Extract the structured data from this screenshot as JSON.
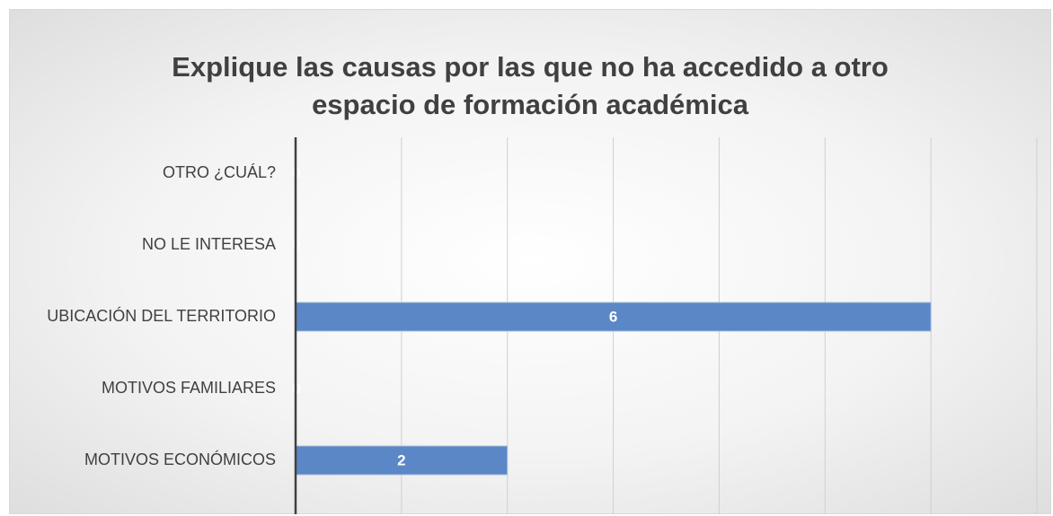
{
  "chart_data": {
    "type": "hbar",
    "title": "Explique las causas por las que no ha accedido a otro espacio de formación académica",
    "categories": [
      "OTRO ¿CUÁL?",
      "NO LE INTERESA",
      "UBICACIÓN DEL TERRITORIO",
      "MOTIVOS FAMILIARES",
      "MOTIVOS ECONÓMICOS"
    ],
    "values": [
      0,
      0,
      6,
      0,
      2
    ],
    "color": "#5b87c6",
    "xlim": [
      0,
      7
    ],
    "xticks": [
      0,
      1,
      2,
      3,
      4,
      5,
      6,
      7
    ],
    "grid": true
  }
}
